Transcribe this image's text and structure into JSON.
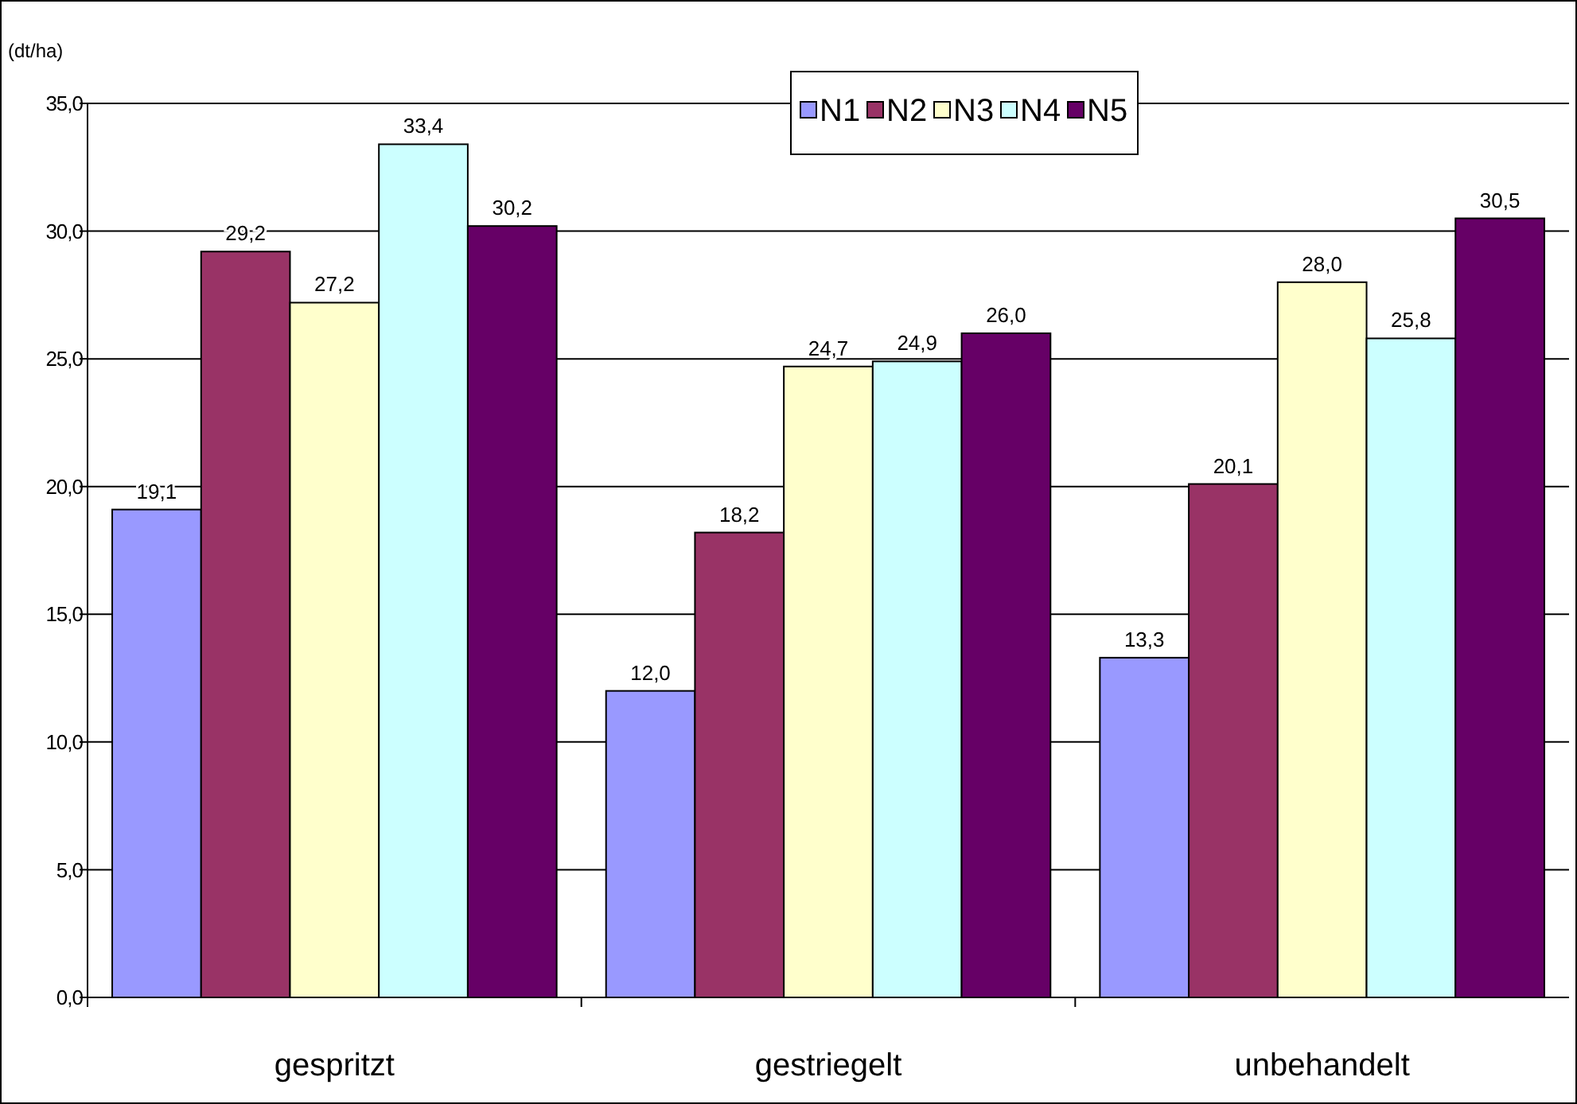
{
  "chart_data": {
    "type": "bar",
    "ylabel": "(dt/ha)",
    "categories": [
      "gespritzt",
      "gestriegelt",
      "unbehandelt"
    ],
    "series": [
      {
        "name": "N1",
        "color": "#9999ff",
        "values": [
          19.1,
          12.0,
          13.3
        ],
        "value_labels": [
          "19,1",
          "12,0",
          "13,3"
        ]
      },
      {
        "name": "N2",
        "color": "#993366",
        "values": [
          29.2,
          18.2,
          20.1
        ],
        "value_labels": [
          "29,2",
          "18,2",
          "20,1"
        ]
      },
      {
        "name": "N3",
        "color": "#ffffcc",
        "values": [
          27.2,
          24.7,
          28.0
        ],
        "value_labels": [
          "27,2",
          "24,7",
          "28,0"
        ]
      },
      {
        "name": "N4",
        "color": "#ccffff",
        "values": [
          33.4,
          24.9,
          25.8
        ],
        "value_labels": [
          "33,4",
          "24,9",
          "25,8"
        ]
      },
      {
        "name": "N5",
        "color": "#660066",
        "values": [
          30.2,
          26.0,
          30.5
        ],
        "value_labels": [
          "30,2",
          "26,0",
          "30,5"
        ]
      }
    ],
    "ylim": [
      0,
      35
    ],
    "yticks": [
      {
        "value": 0,
        "label": "0,0"
      },
      {
        "value": 5,
        "label": "5,0"
      },
      {
        "value": 10,
        "label": "10,0"
      },
      {
        "value": 15,
        "label": "15,0"
      },
      {
        "value": 20,
        "label": "20,0"
      },
      {
        "value": 25,
        "label": "25,0"
      },
      {
        "value": 30,
        "label": "30,0"
      },
      {
        "value": 35,
        "label": "35,0"
      }
    ],
    "grid": "y",
    "legend": "top"
  }
}
